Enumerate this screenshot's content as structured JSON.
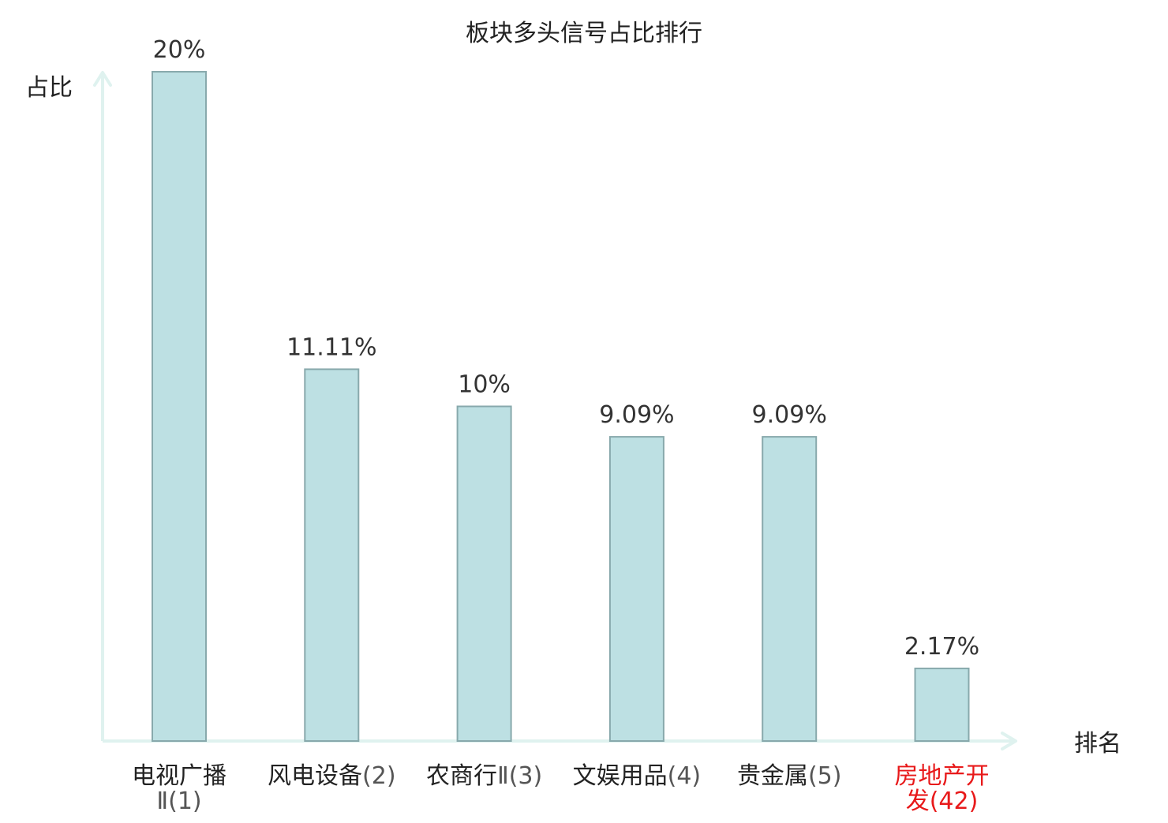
{
  "chart_data": {
    "type": "bar",
    "title": "板块多头信号占比排行",
    "ylabel": "占比",
    "xlabel": "排名",
    "ylim": [
      0,
      20
    ],
    "grid": false,
    "legend": "none",
    "categories": [
      {
        "name": "电视广播",
        "rank": "Ⅱ(1)",
        "highlight": false
      },
      {
        "name": "风电设备",
        "rank": "(2)",
        "highlight": false
      },
      {
        "name": "农商行",
        "rank": "Ⅱ(3)",
        "highlight": false
      },
      {
        "name": "文娱用品",
        "rank": "(4)",
        "highlight": false
      },
      {
        "name": "贵金属",
        "rank": "(5)",
        "highlight": false
      },
      {
        "name": "房地产开发",
        "rank": "(42)",
        "highlight": true
      }
    ],
    "values": [
      20,
      11.11,
      10,
      9.09,
      9.09,
      2.17
    ],
    "value_labels": [
      "20%",
      "11.11%",
      "10%",
      "9.09%",
      "9.09%",
      "2.17%"
    ],
    "colors": {
      "bar_fill": "#bde0e3",
      "bar_stroke": "#88a9ac",
      "axis": "#dff2ef",
      "text": "#222222",
      "value_label": "#333333",
      "rank_text": "#555555",
      "highlight": "#e8191a"
    }
  }
}
